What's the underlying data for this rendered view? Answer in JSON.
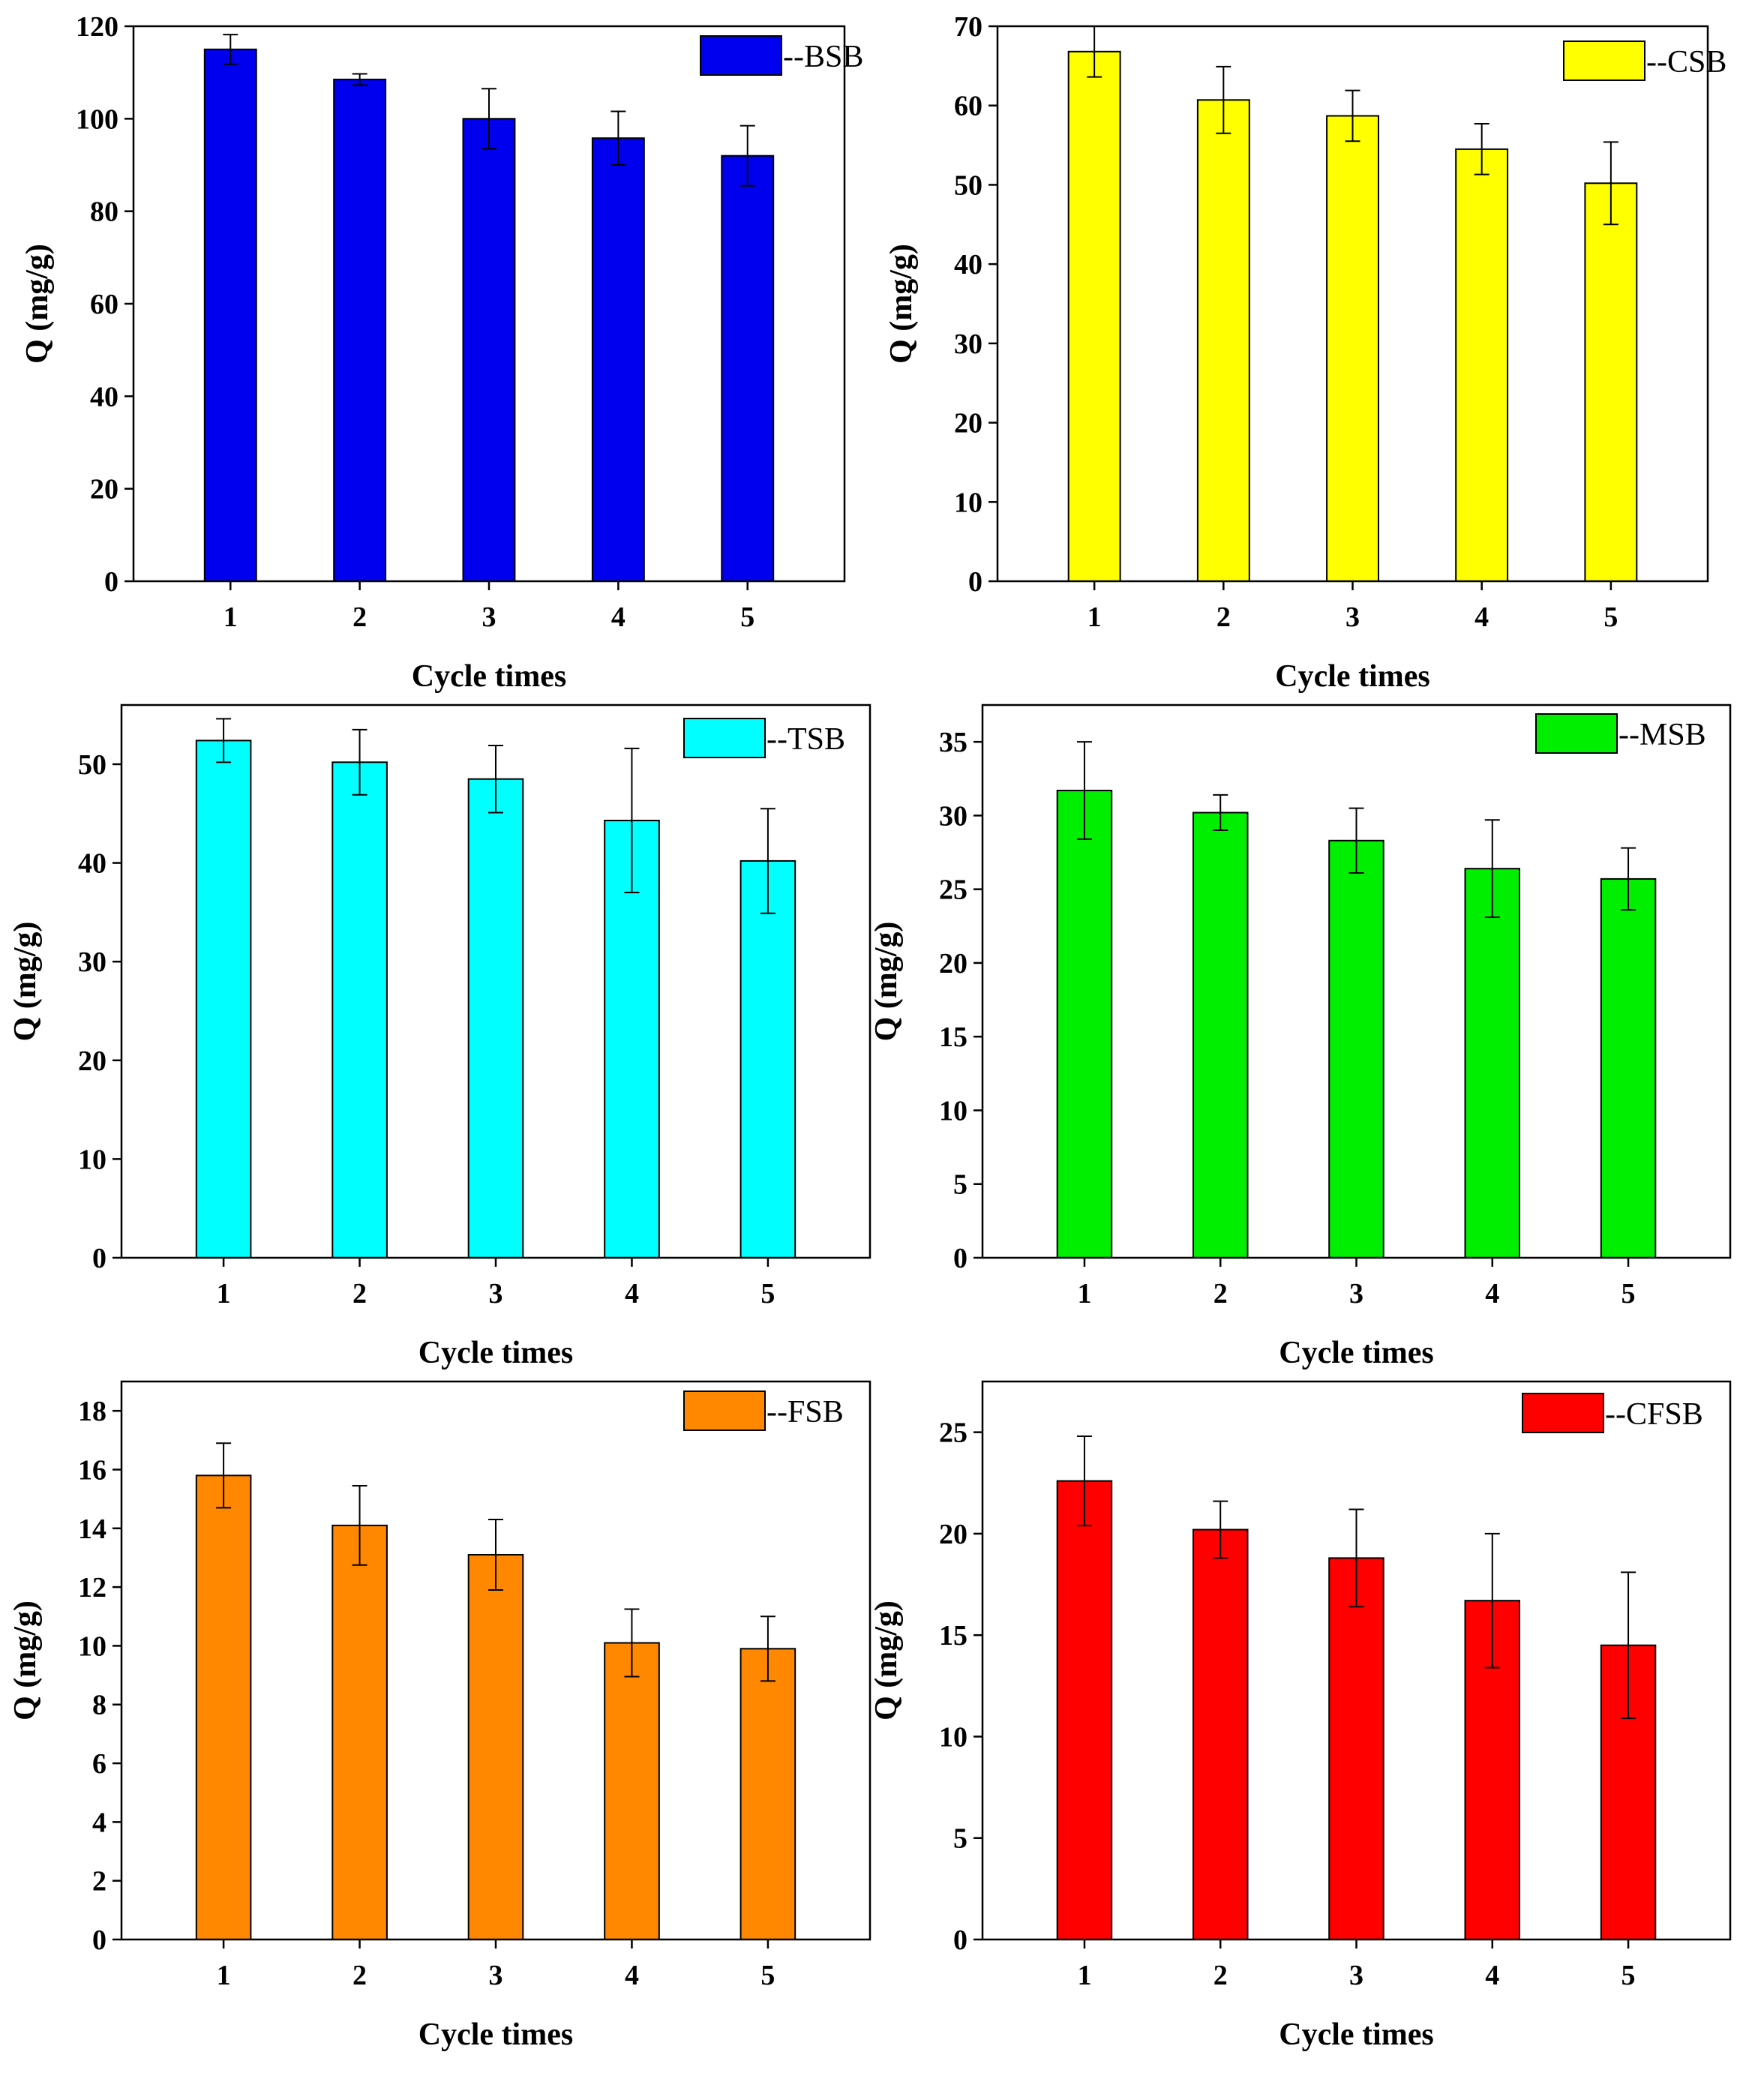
{
  "chart_data": [
    {
      "type": "bar",
      "series_name": "--BSB",
      "color": "#0000ee",
      "categories": [
        "1",
        "2",
        "3",
        "4",
        "5"
      ],
      "values": [
        115,
        108.5,
        100,
        95.8,
        92
      ],
      "errors": [
        3.2,
        1.2,
        6.5,
        5.8,
        6.5
      ],
      "xlabel": "Cycle times",
      "ylabel": "Q (mg/g)",
      "ylim": [
        0,
        120
      ],
      "yticks": [
        0,
        20,
        40,
        60,
        80,
        100,
        120
      ],
      "legend_position": "top-right"
    },
    {
      "type": "bar",
      "series_name": "--CSB",
      "color": "#ffff00",
      "categories": [
        "1",
        "2",
        "3",
        "4",
        "5"
      ],
      "values": [
        66.8,
        60.7,
        58.7,
        54.5,
        50.2
      ],
      "errors": [
        3.2,
        4.2,
        3.2,
        3.2,
        5.2
      ],
      "xlabel": "Cycle times",
      "ylabel": "Q (mg/g)",
      "ylim": [
        0,
        70
      ],
      "yticks": [
        0,
        10,
        20,
        30,
        40,
        50,
        60,
        70
      ],
      "legend_position": "top-right"
    },
    {
      "type": "bar",
      "series_name": "--TSB",
      "color": "#00ffff",
      "categories": [
        "1",
        "2",
        "3",
        "4",
        "5"
      ],
      "values": [
        52.4,
        50.2,
        48.5,
        44.3,
        40.2
      ],
      "errors": [
        2.2,
        3.3,
        3.4,
        7.3,
        5.3
      ],
      "xlabel": "Cycle times",
      "ylabel": "Q (mg/g)",
      "ylim": [
        0,
        56
      ],
      "yticks": [
        0,
        10,
        20,
        30,
        40,
        50
      ],
      "legend_position": "top-right"
    },
    {
      "type": "bar",
      "series_name": "--MSB",
      "color": "#00ee00",
      "categories": [
        "1",
        "2",
        "3",
        "4",
        "5"
      ],
      "values": [
        31.7,
        30.2,
        28.3,
        26.4,
        25.7
      ],
      "errors": [
        3.3,
        1.2,
        2.2,
        3.3,
        2.1
      ],
      "xlabel": "Cycle times",
      "ylabel": "Q (mg/g)",
      "ylim": [
        0,
        37.5
      ],
      "yticks": [
        0,
        5,
        10,
        15,
        20,
        25,
        30,
        35
      ],
      "legend_position": "top-right"
    },
    {
      "type": "bar",
      "series_name": "--FSB",
      "color": "#ff8800",
      "categories": [
        "1",
        "2",
        "3",
        "4",
        "5"
      ],
      "values": [
        15.8,
        14.1,
        13.1,
        10.1,
        9.9
      ],
      "errors": [
        1.1,
        1.35,
        1.2,
        1.15,
        1.1
      ],
      "xlabel": "Cycle times",
      "ylabel": "Q (mg/g)",
      "ylim": [
        0,
        19
      ],
      "yticks": [
        0,
        2,
        4,
        6,
        8,
        10,
        12,
        14,
        16,
        18
      ],
      "legend_position": "top-right"
    },
    {
      "type": "bar",
      "series_name": "--CFSB",
      "color": "#ff0000",
      "categories": [
        "1",
        "2",
        "3",
        "4",
        "5"
      ],
      "values": [
        22.6,
        20.2,
        18.8,
        16.7,
        14.5
      ],
      "errors": [
        2.2,
        1.4,
        2.4,
        3.3,
        3.6
      ],
      "xlabel": "Cycle times",
      "ylabel": "Q (mg/g)",
      "ylim": [
        0,
        27.5
      ],
      "yticks": [
        0,
        5,
        10,
        15,
        20,
        25
      ],
      "legend_position": "top-right"
    }
  ]
}
